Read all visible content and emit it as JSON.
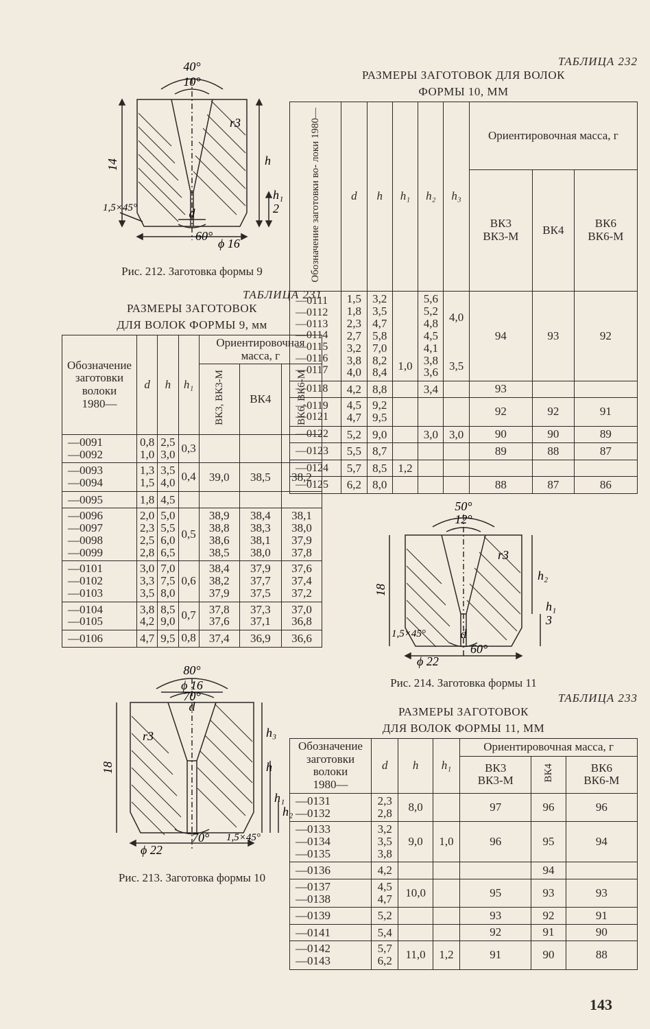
{
  "pageNumber": "143",
  "fig212": {
    "caption": "Рис. 212. Заготовка формы 9",
    "labels": {
      "top1": "40°",
      "top2": "10°",
      "r": "r3",
      "h": "h",
      "h1": "h₁",
      "two": "2",
      "h14": "14",
      "d": "d",
      "ang60": "60°",
      "phi": "ϕ 16",
      "cham": "1,5×45°"
    }
  },
  "fig213": {
    "caption": "Рис. 213. Заготовка формы 10",
    "labels": {
      "top1": "80°",
      "phi16": "ϕ 16",
      "top2": "70°",
      "d": "d",
      "r": "r3",
      "h3": "h₃",
      "h": "h",
      "h1": "h₁",
      "h2": "h₂",
      "h18": "18",
      "ang70": "70°",
      "cham": "1,5×45°",
      "phi22": "ϕ 22"
    }
  },
  "fig214": {
    "caption": "Рис. 214. Заготовка формы 11",
    "labels": {
      "top1": "50°",
      "top2": "12°",
      "r": "r3",
      "h2": "h₂",
      "h1": "h₁",
      "three": "3",
      "h18": "18",
      "d": "d",
      "ang60": "60°",
      "cham": "1,5×45°",
      "phi22": "ϕ 22"
    }
  },
  "table231": {
    "titleLabel": "ТАБЛИЦА 231",
    "subtitle1": "РАЗМЕРЫ ЗАГОТОВОК",
    "subtitle2": "ДЛЯ ВОЛОК ФОРМЫ 9, мм",
    "headers": {
      "c1": "Обозначение заготовки волоки 1980—",
      "d": "d",
      "h": "h",
      "h1": "h₁",
      "mass": "Ориентировочная масса, г",
      "m1": "ВК3, ВК3-М",
      "m2": "ВК4",
      "m3": "ВК6, ВК6-М"
    },
    "rows": [
      {
        "codes": [
          "—0091",
          "—0092"
        ],
        "d": [
          "0,8",
          "1,0"
        ],
        "h": [
          "2,5",
          "3,0"
        ],
        "h1": "0,3",
        "m1": "",
        "m2": "",
        "m3": ""
      },
      {
        "codes": [
          "—0093",
          "—0094"
        ],
        "d": [
          "1,3",
          "1,5"
        ],
        "h": [
          "3,5",
          "4,0"
        ],
        "h1": "0,4",
        "m1": "39,0",
        "m2": "38,5",
        "m3": "38,2"
      },
      {
        "codes": [
          "—0095"
        ],
        "d": [
          "1,8"
        ],
        "h": [
          "4,5"
        ],
        "h1": "",
        "m1": "",
        "m2": "",
        "m3": ""
      },
      {
        "codes": [
          "—0096",
          "—0097",
          "—0098",
          "—0099"
        ],
        "d": [
          "2,0",
          "2,3",
          "2,5",
          "2,8"
        ],
        "h": [
          "5,0",
          "5,5",
          "6,0",
          "6,5"
        ],
        "h1": "0,5",
        "m1": [
          "38,9",
          "38,8",
          "38,6",
          "38,5"
        ],
        "m2": [
          "38,4",
          "38,3",
          "38,1",
          "38,0"
        ],
        "m3": [
          "38,1",
          "38,0",
          "37,9",
          "37,8"
        ]
      },
      {
        "codes": [
          "—0101",
          "—0102",
          "—0103"
        ],
        "d": [
          "3,0",
          "3,3",
          "3,5"
        ],
        "h": [
          "7,0",
          "7,5",
          "8,0"
        ],
        "h1": "0,6",
        "m1": [
          "38,4",
          "38,2",
          "37,9"
        ],
        "m2": [
          "37,9",
          "37,7",
          "37,5"
        ],
        "m3": [
          "37,6",
          "37,4",
          "37,2"
        ]
      },
      {
        "codes": [
          "—0104",
          "—0105"
        ],
        "d": [
          "3,8",
          "4,2"
        ],
        "h": [
          "8,5",
          "9,0"
        ],
        "h1": "0,7",
        "m1": [
          "37,8",
          "37,6"
        ],
        "m2": [
          "37,3",
          "37,1"
        ],
        "m3": [
          "37,0",
          "36,8"
        ]
      },
      {
        "codes": [
          "—0106"
        ],
        "d": [
          "4,7"
        ],
        "h": [
          "9,5"
        ],
        "h1": "0,8",
        "m1": "37,4",
        "m2": "36,9",
        "m3": "36,6"
      }
    ]
  },
  "table232": {
    "titleLabel": "ТАБЛИЦА 232",
    "subtitle1": "РАЗМЕРЫ ЗАГОТОВОК ДЛЯ ВОЛОК",
    "subtitle2": "ФОРМЫ 10, ММ",
    "headers": {
      "c1": "Обозначение заготовки во- локи 1980—",
      "d": "d",
      "h": "h",
      "h1": "h₁",
      "h2": "h₂",
      "h3": "h₃",
      "mass": "Ориентировочная масса, г",
      "m1": "ВК3, ВК3-М",
      "m2": "ВК4",
      "m3": "ВК6, ВК6-М"
    },
    "rows": [
      {
        "codes": [
          "—0111",
          "—0112",
          "—0113",
          "—0114",
          "—0115",
          "—0116",
          "—0117"
        ],
        "d": [
          "1,5",
          "1,8",
          "2,3",
          "2,7",
          "3,2",
          "3,8",
          "4,0"
        ],
        "h": [
          "3,2",
          "3,5",
          "4,7",
          "5,8",
          "7,0",
          "8,2",
          "8,4"
        ],
        "h1": [
          "",
          "",
          "",
          "",
          "",
          "1,0",
          ""
        ],
        "h2": [
          "5,6",
          "5,2",
          "4,8",
          "4,5",
          "4,1",
          "3,8",
          "3,6"
        ],
        "h3": [
          "",
          "4,0",
          "",
          "",
          "",
          "3,5",
          ""
        ],
        "m1": "94",
        "m2": "93",
        "m3": "92"
      },
      {
        "codes": [
          "—0118"
        ],
        "d": [
          "4,2"
        ],
        "h": [
          "8,8"
        ],
        "h1": "",
        "h2": "3,4",
        "h3": "",
        "m1": "93",
        "m2": "",
        "m3": ""
      },
      {
        "codes": [
          "—0119",
          "—0121"
        ],
        "d": [
          "4,5",
          "4,7"
        ],
        "h": [
          "9,2",
          "9,5"
        ],
        "h1": "",
        "h2": "",
        "h3": "",
        "m1": "92",
        "m2": "92",
        "m3": "91"
      },
      {
        "codes": [
          "—0122"
        ],
        "d": [
          "5,2"
        ],
        "h": [
          "9,0"
        ],
        "h1": "",
        "h2": "3,0",
        "h3": "3,0",
        "m1": "90",
        "m2": "90",
        "m3": "89"
      },
      {
        "codes": [
          "—0123"
        ],
        "d": [
          "5,5"
        ],
        "h": [
          "8,7"
        ],
        "h1": "",
        "h2": "",
        "h3": "",
        "m1": "89",
        "m2": "88",
        "m3": "87"
      },
      {
        "codes": [
          "—0124"
        ],
        "d": [
          "5,7"
        ],
        "h": [
          "8,5"
        ],
        "h1": "1,2",
        "h2": "",
        "h3": "",
        "m1": "",
        "m2": "",
        "m3": ""
      },
      {
        "codes": [
          "—0125"
        ],
        "d": [
          "6,2"
        ],
        "h": [
          "8,0"
        ],
        "h1": "",
        "h2": "",
        "h3": "",
        "m1": "88",
        "m2": "87",
        "m3": "86"
      }
    ]
  },
  "table233": {
    "titleLabel": "ТАБЛИЦА 233",
    "subtitle1": "РАЗМЕРЫ ЗАГОТОВОК",
    "subtitle2": "ДЛЯ ВОЛОК ФОРМЫ 11, ММ",
    "headers": {
      "c1": "Обозначение заготовки волоки 1980—",
      "d": "d",
      "h": "h",
      "h1": "h₁",
      "mass": "Ориентировочная масса, г",
      "m1": "ВК3, ВК3-М",
      "m2": "ВК4",
      "m3": "ВК6, ВК6-М"
    },
    "rows": [
      {
        "codes": [
          "—0131",
          "—0132"
        ],
        "d": [
          "2,3",
          "2,8"
        ],
        "h": "8,0",
        "h1": "",
        "m1": "97",
        "m2": "96",
        "m3": "96"
      },
      {
        "codes": [
          "—0133",
          "—0134",
          "—0135"
        ],
        "d": [
          "3,2",
          "3,5",
          "3,8"
        ],
        "h": "9,0",
        "h1": "1,0",
        "m1": "96",
        "m2": "95",
        "m3": "94",
        "h1span": true
      },
      {
        "codes": [
          "—0136"
        ],
        "d": [
          "4,2"
        ],
        "h": "",
        "h1": "",
        "m1": "",
        "m2": "94",
        "m3": ""
      },
      {
        "codes": [
          "—0137",
          "—0138"
        ],
        "d": [
          "4,5",
          "4,7"
        ],
        "h": "10,0",
        "h1": "",
        "m1": "95",
        "m2": "93",
        "m3": "93"
      },
      {
        "codes": [
          "—0139"
        ],
        "d": [
          "5,2"
        ],
        "h": "",
        "h1": "",
        "m1": "93",
        "m2": "92",
        "m3": "91"
      },
      {
        "codes": [
          "—0141"
        ],
        "d": [
          "5,4"
        ],
        "h": "",
        "h1": "",
        "m1": "92",
        "m2": "91",
        "m3": "90"
      },
      {
        "codes": [
          "—0142",
          "—0143"
        ],
        "d": [
          "5,7",
          "6,2"
        ],
        "h": "11,0",
        "h1": "1,2",
        "m1": "91",
        "m2": "90",
        "m3": "88"
      }
    ]
  }
}
